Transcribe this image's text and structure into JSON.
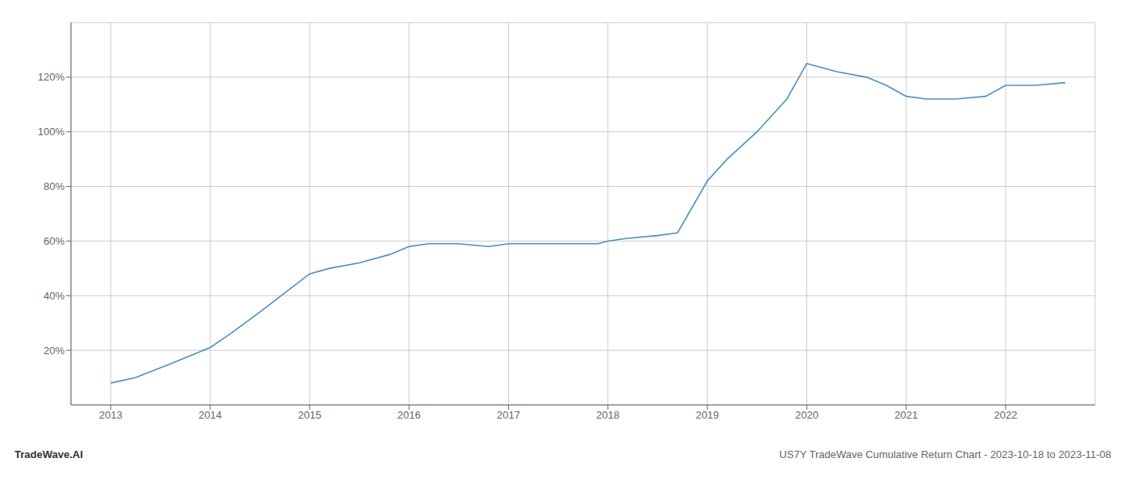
{
  "chart_data": {
    "type": "line",
    "annotations": [
      "TradeWave.AI",
      "US7Y TradeWave Cumulative Return Chart - 2023-10-18 to 2023-11-08"
    ],
    "x": [
      2013.0,
      2013.25,
      2013.6,
      2014.0,
      2014.2,
      2014.5,
      2014.75,
      2015.0,
      2015.2,
      2015.5,
      2015.8,
      2016.0,
      2016.2,
      2016.5,
      2016.8,
      2017.0,
      2017.3,
      2017.6,
      2017.9,
      2018.0,
      2018.2,
      2018.5,
      2018.7,
      2019.0,
      2019.2,
      2019.5,
      2019.8,
      2020.0,
      2020.1,
      2020.3,
      2020.6,
      2020.8,
      2021.0,
      2021.2,
      2021.5,
      2021.8,
      2022.0,
      2022.3,
      2022.6
    ],
    "values": [
      8,
      10,
      15,
      21,
      26,
      34,
      41,
      48,
      50,
      52,
      55,
      58,
      59,
      59,
      58,
      59,
      59,
      59,
      59,
      60,
      61,
      62,
      63,
      82,
      90,
      100,
      112,
      125,
      124,
      122,
      120,
      117,
      113,
      112,
      112,
      113,
      117,
      117,
      118
    ],
    "color": "#4a90c4",
    "xlim": [
      2012.6,
      2022.9
    ],
    "ylim": [
      0,
      140
    ],
    "xticks": [
      2013,
      2014,
      2015,
      2016,
      2017,
      2018,
      2019,
      2020,
      2021,
      2022
    ],
    "yticks": [
      {
        "value": 20,
        "label": "20%"
      },
      {
        "value": 40,
        "label": "40%"
      },
      {
        "value": 60,
        "label": "60%"
      },
      {
        "value": 80,
        "label": "80%"
      },
      {
        "value": 100,
        "label": "100%"
      },
      {
        "value": 120,
        "label": "120%"
      }
    ],
    "grid": true
  }
}
